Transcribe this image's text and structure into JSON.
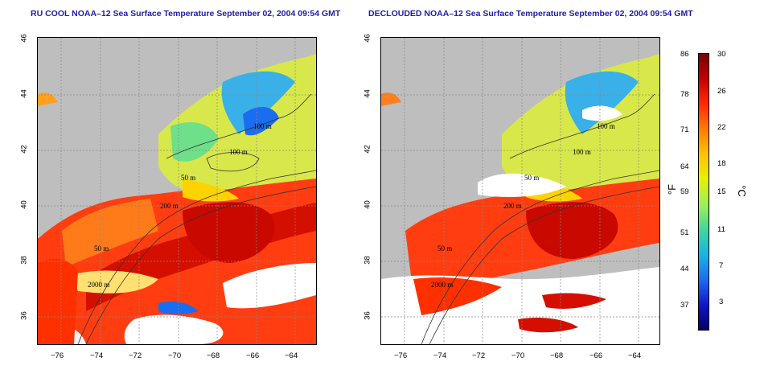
{
  "panels": [
    {
      "title": "RU COOL NOAA–12 Sea Surface Temperature September 02, 2004 09:54 GMT"
    },
    {
      "title": "DECLOUDED NOAA–12 Sea Surface Temperature September 02, 2004 09:54 GMT"
    }
  ],
  "axes": {
    "lon_ticks": [
      "−76",
      "−74",
      "−72",
      "−70",
      "−68",
      "−66",
      "−64"
    ],
    "lat_ticks": [
      "46",
      "44",
      "42",
      "40",
      "38",
      "36"
    ]
  },
  "isobaths": [
    "100 m",
    "100 m",
    "50 m",
    "200 m",
    "50 m",
    "2000 m"
  ],
  "colorbar": {
    "fahrenheit_ticks": [
      "86",
      "78",
      "71",
      "64",
      "59",
      "51",
      "44",
      "37"
    ],
    "celsius_ticks": [
      "30",
      "26",
      "22",
      "18",
      "15",
      "11",
      "7",
      "3"
    ],
    "fahrenheit_unit": "°F",
    "celsius_unit": "°C",
    "colors": [
      "#7a0000",
      "#c40000",
      "#ff2a00",
      "#ff7a00",
      "#ffc000",
      "#e8f000",
      "#9bf05a",
      "#3fd6a0",
      "#15b4e6",
      "#1a6cf0",
      "#1414c8",
      "#00006e"
    ]
  }
}
